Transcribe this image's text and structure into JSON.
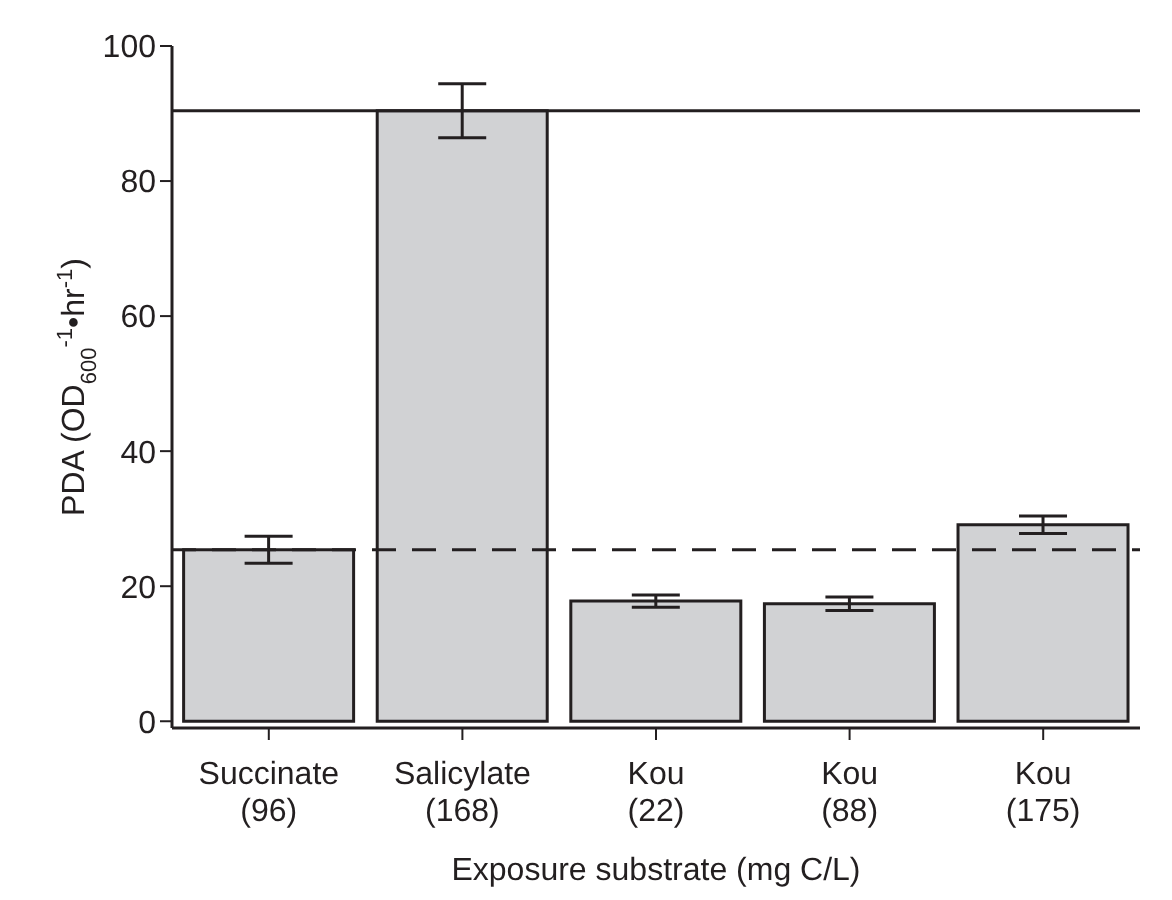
{
  "chart_data": {
    "type": "bar",
    "xlabel": "Exposure substrate (mg C/L)",
    "ylabel": "PDA (OD$_{600}$$^{-1}$•hr$^{-1}$)",
    "categories": [
      "Succinate\n(96)",
      "Salicylate\n(168)",
      "Kou\n(22)",
      "Kou\n(88)",
      "Kou\n(175)"
    ],
    "values": [
      25.4,
      90.4,
      17.8,
      17.4,
      29.1
    ],
    "errors": [
      2.0,
      4.0,
      0.9,
      1.0,
      1.3
    ],
    "color": "#d1d2d4",
    "ylim": [
      -1,
      100
    ],
    "yticks": [
      0,
      20,
      40,
      60,
      80,
      100
    ],
    "grid": false,
    "legend": false,
    "ref_lines": [
      {
        "axis": "y",
        "value": 90.4,
        "line_style": "solid",
        "color": "#231f20"
      },
      {
        "axis": "y",
        "value": 25.4,
        "line_style": "dashed",
        "color": "#231f20"
      }
    ]
  }
}
